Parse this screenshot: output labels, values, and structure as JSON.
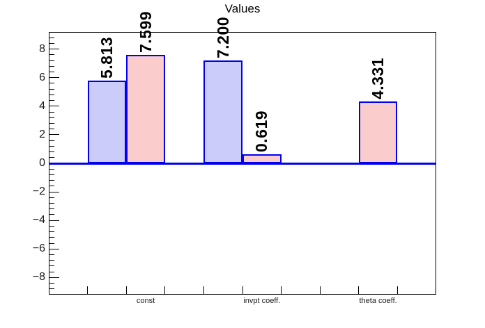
{
  "title": "Values",
  "chart_data": {
    "type": "bar",
    "title": "Values",
    "categories": [
      "const",
      "invpt coeff.",
      "theta coeff."
    ],
    "series": [
      {
        "name": "blue-series",
        "fill": "#ccccfa",
        "values": [
          5.813,
          7.2,
          null
        ]
      },
      {
        "name": "pink-series",
        "fill": "#fbcccc",
        "values": [
          7.599,
          0.619,
          4.331
        ]
      }
    ],
    "bars": [
      {
        "bin": 1,
        "series": 0,
        "value": 5.813,
        "label": "5.813"
      },
      {
        "bin": 2,
        "series": 1,
        "value": 7.599,
        "label": "7.599"
      },
      {
        "bin": 4,
        "series": 0,
        "value": 7.2,
        "label": "7.200"
      },
      {
        "bin": 5,
        "series": 1,
        "value": 0.619,
        "label": "0.619"
      },
      {
        "bin": 8,
        "series": 1,
        "value": 4.331,
        "label": "4.331"
      }
    ],
    "category_label_bins": [
      2,
      5,
      8
    ],
    "n_bins": 10,
    "ylim": [
      -9.2,
      9.2
    ],
    "y_major_step": 2,
    "y_minor_step": 0.4,
    "y_tick_values": [
      8,
      6,
      4,
      2,
      0,
      -2,
      -4,
      -6,
      -8
    ],
    "y_tick_labels": [
      "8",
      "6",
      "4",
      "2",
      "0",
      "−2",
      "−4",
      "−6",
      "−8"
    ],
    "grid": false,
    "legend": false,
    "bar_border_color": "#0000ee",
    "baseline_color": "#0000ee",
    "xlabel": "",
    "ylabel": ""
  }
}
